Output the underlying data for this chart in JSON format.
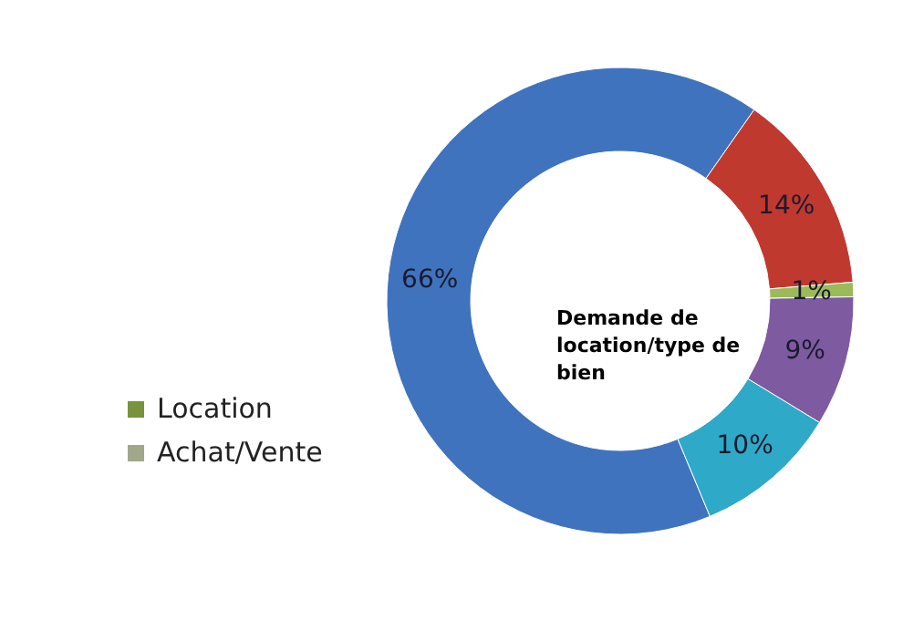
{
  "chart_data": [
    {
      "type": "other",
      "annotations": [
        "Location",
        "Achat/Vente"
      ]
    },
    {
      "type": "donut",
      "title": "Demande de location/type de bien",
      "categories": [
        null,
        null,
        null,
        null,
        null
      ],
      "values": [
        66,
        14,
        1,
        9,
        10
      ],
      "value_labels": [
        "66%",
        "14%",
        "1%",
        "9%",
        "10%"
      ],
      "colors": [
        "#3f73be",
        "#c0392f",
        "#9bbb59",
        "#7e5aa0",
        "#2fa9c8"
      ]
    }
  ]
}
